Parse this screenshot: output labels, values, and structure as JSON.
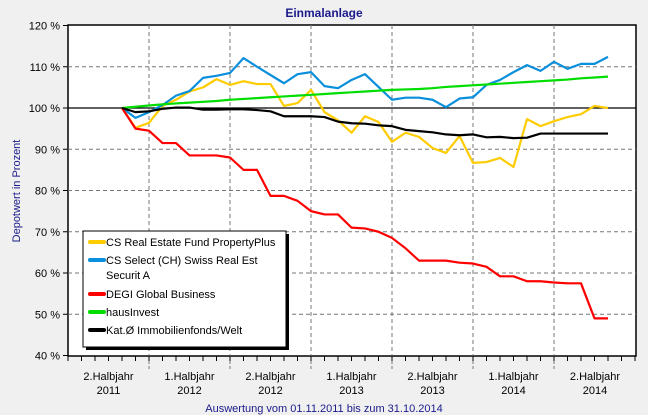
{
  "chart_data": {
    "type": "line",
    "title": "Einmalanlage",
    "xlabel": "Auswertung vom 01.11.2011 bis zum 31.10.2014",
    "ylabel": "Depotwert in Prozent",
    "ylim": [
      40,
      120
    ],
    "yticks": [
      "40 %",
      "50 %",
      "60 %",
      "70 %",
      "80 %",
      "90 %",
      "100 %",
      "110 %",
      "120 %"
    ],
    "ytick_values": [
      40,
      50,
      60,
      70,
      80,
      90,
      100,
      110,
      120
    ],
    "xtick_labels": [
      [
        "2.Halbjahr",
        "2011"
      ],
      [
        "1.Halbjahr",
        "2012"
      ],
      [
        "2.Halbjahr",
        "2012"
      ],
      [
        "1.Halbjahr",
        "2013"
      ],
      [
        "2.Halbjahr",
        "2013"
      ],
      [
        "1.Halbjahr",
        "2014"
      ],
      [
        "2.Halbjahr",
        "2014"
      ]
    ],
    "x_unit": "month index from 01.11.2011",
    "grid": true,
    "legend_position": "bottom-left",
    "series": [
      {
        "name": "CS Real Estate Fund PropertyPlus",
        "color": "#ffcc00",
        "values": [
          100,
          95.2,
          96.4,
          100.5,
          102,
          104,
          105,
          107,
          105.6,
          106.5,
          105.8,
          105.8,
          100.5,
          101.2,
          104.4,
          99,
          97,
          94,
          98,
          96.6,
          91.8,
          94,
          93,
          90.3,
          89.1,
          93.2,
          86.7,
          86.9,
          87.9,
          85.7,
          97.3,
          95.6,
          96.8,
          97.8,
          98.5,
          100.5,
          100
        ]
      },
      {
        "name": "CS Select (CH) Swiss Real Est Securit A",
        "name_lines": [
          "CS Select (CH) Swiss Real Est",
          "Securit A"
        ],
        "color": "#0a8fdc",
        "values": [
          100,
          97.6,
          99,
          100.7,
          103,
          104.1,
          107.3,
          107.8,
          108.5,
          112.1,
          110,
          108,
          106,
          108.2,
          108.7,
          105.3,
          104.8,
          106.8,
          108.2,
          105.1,
          102,
          102.5,
          102.5,
          102,
          100.2,
          102.3,
          102.6,
          105.6,
          106.8,
          108.7,
          110.4,
          109,
          111.2,
          109.5,
          110.7,
          110.7,
          112.4
        ]
      },
      {
        "name": "DEGI Global Business",
        "color": "#ff0000",
        "values": [
          100,
          95,
          94.5,
          91.5,
          91.5,
          88.5,
          88.5,
          88.5,
          88,
          85,
          85,
          78.7,
          78.7,
          77.5,
          75,
          74.2,
          74.2,
          71,
          70.8,
          70,
          68.5,
          66,
          63,
          63,
          63,
          62.5,
          62.3,
          61.5,
          59.2,
          59.2,
          58,
          58,
          57.7,
          57.5,
          57.5,
          49,
          49
        ]
      },
      {
        "name": "hausInvest",
        "color": "#00dd00",
        "values": [
          100,
          100.3,
          100.6,
          100.9,
          101.1,
          101.3,
          101.5,
          101.7,
          102,
          102.2,
          102.4,
          102.6,
          102.8,
          103,
          103.2,
          103.4,
          103.6,
          103.8,
          104,
          104.2,
          104.4,
          104.5,
          104.6,
          104.8,
          105.1,
          105.3,
          105.5,
          105.7,
          105.9,
          106.1,
          106.3,
          106.5,
          106.7,
          106.9,
          107.2,
          107.4,
          107.6
        ]
      },
      {
        "name": "Kat.Ø Immobilienfonds/Welt",
        "color": "#000000",
        "values": [
          100,
          99,
          99.2,
          99.8,
          100.1,
          100.1,
          99.6,
          99.6,
          99.7,
          99.7,
          99.5,
          99.2,
          98,
          98,
          98,
          97.8,
          96.7,
          96.3,
          96.2,
          95.8,
          95.6,
          94.7,
          94.4,
          94.1,
          93.6,
          93.4,
          93.6,
          92.9,
          93,
          92.7,
          92.8,
          93.8,
          93.8,
          93.8,
          93.8,
          93.8,
          93.8
        ]
      }
    ]
  }
}
